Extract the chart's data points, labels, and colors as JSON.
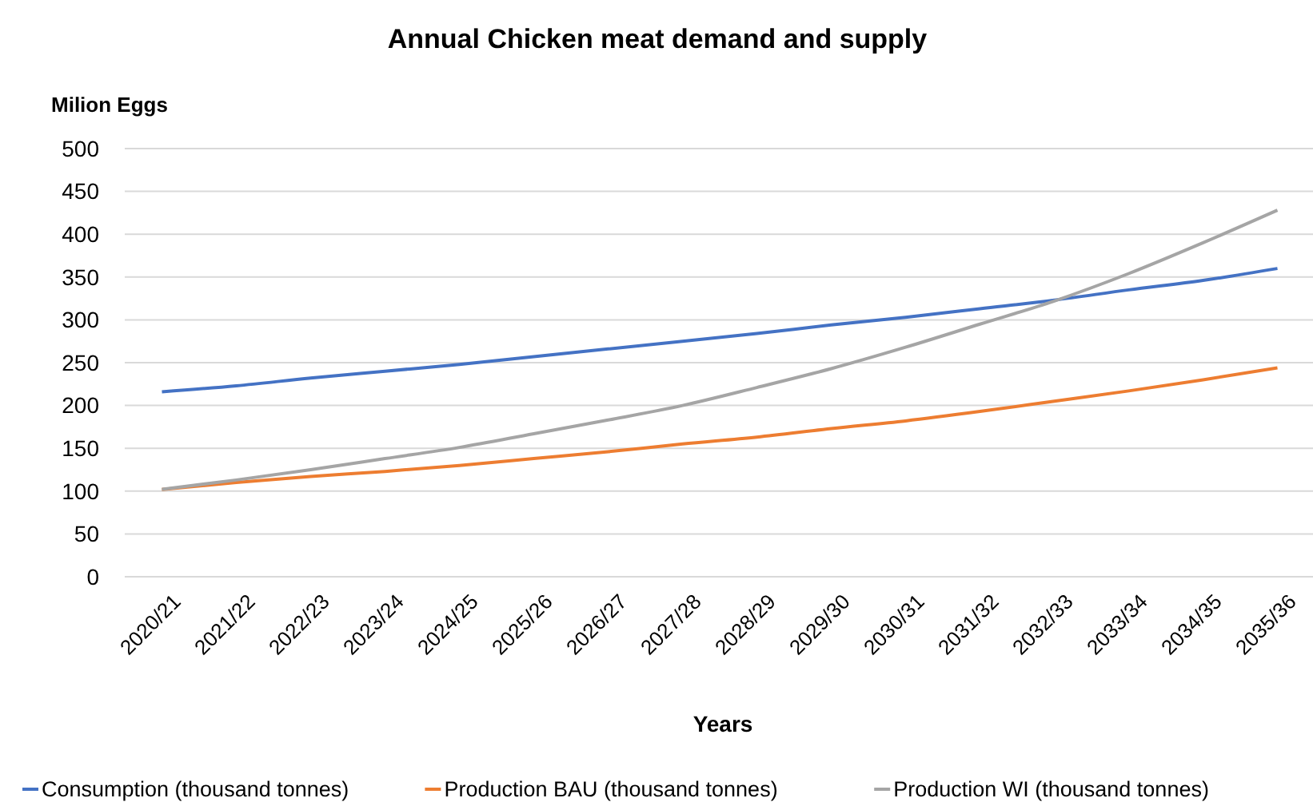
{
  "chart_data": {
    "type": "line",
    "title": "Annual Chicken meat demand and supply",
    "ylabel": "Milion Eggs",
    "xlabel": "Years",
    "categories": [
      "2020/21",
      "2021/22",
      "2022/23",
      "2023/24",
      "2024/25",
      "2025/26",
      "2026/27",
      "2027/28",
      "2028/29",
      "2029/30",
      "2030/31",
      "2031/32",
      "2032/33",
      "2033/34",
      "2034/35",
      "2035/36"
    ],
    "series": [
      {
        "name": "Consumption (thousand tonnes)",
        "color": "#4472c4",
        "values": [
          216,
          223,
          232,
          240,
          248,
          257,
          266,
          275,
          284,
          294,
          303,
          313,
          323,
          335,
          346,
          360
        ]
      },
      {
        "name": "Production  BAU (thousand tonnes)",
        "color": "#ed7d31",
        "values": [
          102,
          110,
          117,
          123,
          130,
          138,
          146,
          155,
          163,
          173,
          182,
          193,
          205,
          217,
          230,
          244
        ]
      },
      {
        "name": "Production WI  (thousand tonnes)",
        "color": "#a5a5a5",
        "values": [
          102,
          113,
          125,
          138,
          151,
          167,
          183,
          200,
          221,
          243,
          268,
          295,
          322,
          354,
          390,
          428
        ]
      }
    ],
    "ylim": [
      0,
      500
    ],
    "yticks": [
      0,
      50,
      100,
      150,
      200,
      250,
      300,
      350,
      400,
      450,
      500
    ],
    "grid": "y",
    "legend": "bottom",
    "marker": "none",
    "line_style": "solid"
  }
}
